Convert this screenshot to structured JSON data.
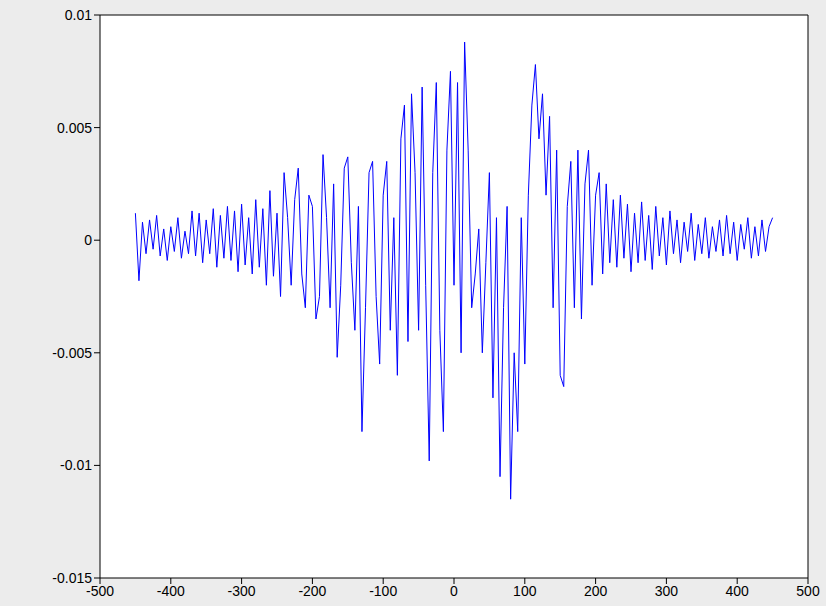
{
  "chart_data": {
    "type": "line",
    "color": "#0000ff",
    "grid": false,
    "xlim": [
      -500,
      500
    ],
    "xticks": [
      -500,
      -400,
      -300,
      -200,
      -100,
      0,
      100,
      200,
      300,
      400,
      500
    ],
    "ylim": [
      -0.015,
      0.01
    ],
    "yticks": [
      -0.015,
      -0.01,
      -0.005,
      0,
      0.005,
      0.01
    ],
    "x": [
      -450,
      -445,
      -440,
      -435,
      -430,
      -425,
      -420,
      -415,
      -410,
      -405,
      -400,
      -395,
      -390,
      -385,
      -380,
      -375,
      -370,
      -365,
      -360,
      -355,
      -350,
      -345,
      -340,
      -335,
      -330,
      -325,
      -320,
      -315,
      -310,
      -305,
      -300,
      -295,
      -290,
      -285,
      -280,
      -275,
      -270,
      -265,
      -260,
      -255,
      -250,
      -245,
      -240,
      -235,
      -230,
      -225,
      -220,
      -215,
      -210,
      -205,
      -200,
      -195,
      -190,
      -185,
      -180,
      -175,
      -170,
      -165,
      -160,
      -155,
      -150,
      -145,
      -140,
      -135,
      -130,
      -125,
      -120,
      -115,
      -110,
      -105,
      -100,
      -95,
      -90,
      -85,
      -80,
      -75,
      -70,
      -65,
      -60,
      -55,
      -50,
      -45,
      -40,
      -35,
      -30,
      -25,
      -20,
      -15,
      -10,
      -5,
      0,
      5,
      10,
      15,
      20,
      25,
      30,
      35,
      40,
      45,
      50,
      55,
      60,
      65,
      70,
      75,
      80,
      85,
      90,
      95,
      100,
      105,
      110,
      115,
      120,
      125,
      130,
      135,
      140,
      145,
      150,
      155,
      160,
      165,
      170,
      175,
      180,
      185,
      190,
      195,
      200,
      205,
      210,
      215,
      220,
      225,
      230,
      235,
      240,
      245,
      250,
      255,
      260,
      265,
      270,
      275,
      280,
      285,
      290,
      295,
      300,
      305,
      310,
      315,
      320,
      325,
      330,
      335,
      340,
      345,
      350,
      355,
      360,
      365,
      370,
      375,
      380,
      385,
      390,
      395,
      400,
      405,
      410,
      415,
      420,
      425,
      430,
      435,
      440,
      445,
      450
    ],
    "values": [
      0.0012,
      -0.0018,
      0.0008,
      -0.0006,
      0.0009,
      -0.0004,
      0.0011,
      -0.0007,
      0.0005,
      -0.0009,
      0.0006,
      -0.0005,
      0.001,
      -0.0008,
      0.0004,
      -0.0006,
      0.0013,
      -0.0007,
      0.0012,
      -0.001,
      0.0009,
      -0.0006,
      0.0014,
      -0.0012,
      0.0011,
      -0.0008,
      0.0015,
      -0.0009,
      0.0013,
      -0.0014,
      0.0016,
      -0.0011,
      0.001,
      -0.0015,
      0.0018,
      -0.0012,
      0.0014,
      -0.002,
      0.0022,
      -0.0016,
      0.0012,
      -0.0025,
      0.003,
      0.001,
      -0.002,
      0.0018,
      0.0032,
      -0.0015,
      -0.003,
      0.002,
      0.0015,
      -0.0035,
      -0.0025,
      0.0038,
      0.001,
      -0.003,
      0.0025,
      -0.0052,
      -0.002,
      0.0032,
      0.0037,
      -0.001,
      -0.004,
      0.0015,
      -0.0085,
      -0.003,
      0.003,
      0.0035,
      -0.0025,
      -0.0055,
      0.002,
      0.0035,
      -0.004,
      0.001,
      -0.006,
      0.0045,
      0.006,
      -0.0045,
      0.0065,
      0.003,
      -0.004,
      0.0068,
      -0.002,
      -0.0098,
      0.003,
      0.007,
      -0.004,
      -0.0085,
      0.004,
      0.0075,
      -0.002,
      0.007,
      -0.005,
      0.0088,
      0.004,
      -0.003,
      -0.0015,
      0.0005,
      -0.005,
      -0.001,
      0.003,
      -0.007,
      0.001,
      -0.0105,
      -0.003,
      0.0015,
      -0.0115,
      -0.005,
      -0.0085,
      0.001,
      -0.0055,
      0.002,
      0.006,
      0.0078,
      0.0045,
      0.0065,
      0.002,
      0.0055,
      -0.003,
      0.004,
      -0.006,
      -0.0065,
      0.0015,
      0.0035,
      -0.003,
      0.004,
      -0.0035,
      0.0025,
      0.004,
      -0.002,
      0.002,
      0.003,
      -0.0015,
      0.0025,
      -0.001,
      0.0018,
      -0.0012,
      0.002,
      -0.0008,
      0.0016,
      -0.0014,
      0.0012,
      -0.001,
      0.0017,
      -0.0009,
      0.0011,
      -0.0013,
      0.0015,
      -0.0007,
      0.001,
      -0.0011,
      0.0013,
      -0.0006,
      0.0009,
      -0.001,
      0.0008,
      -0.0005,
      0.0012,
      -0.0009,
      0.0007,
      -0.0006,
      0.001,
      -0.0008,
      0.0006,
      -0.0005,
      0.0009,
      -0.0007,
      0.0011,
      -0.0006,
      0.0008,
      -0.0009,
      0.0007,
      -0.0004,
      0.001,
      -0.0008,
      0.0006,
      -0.0007,
      0.0009,
      -0.0005,
      0.0006,
      0.001
    ]
  }
}
